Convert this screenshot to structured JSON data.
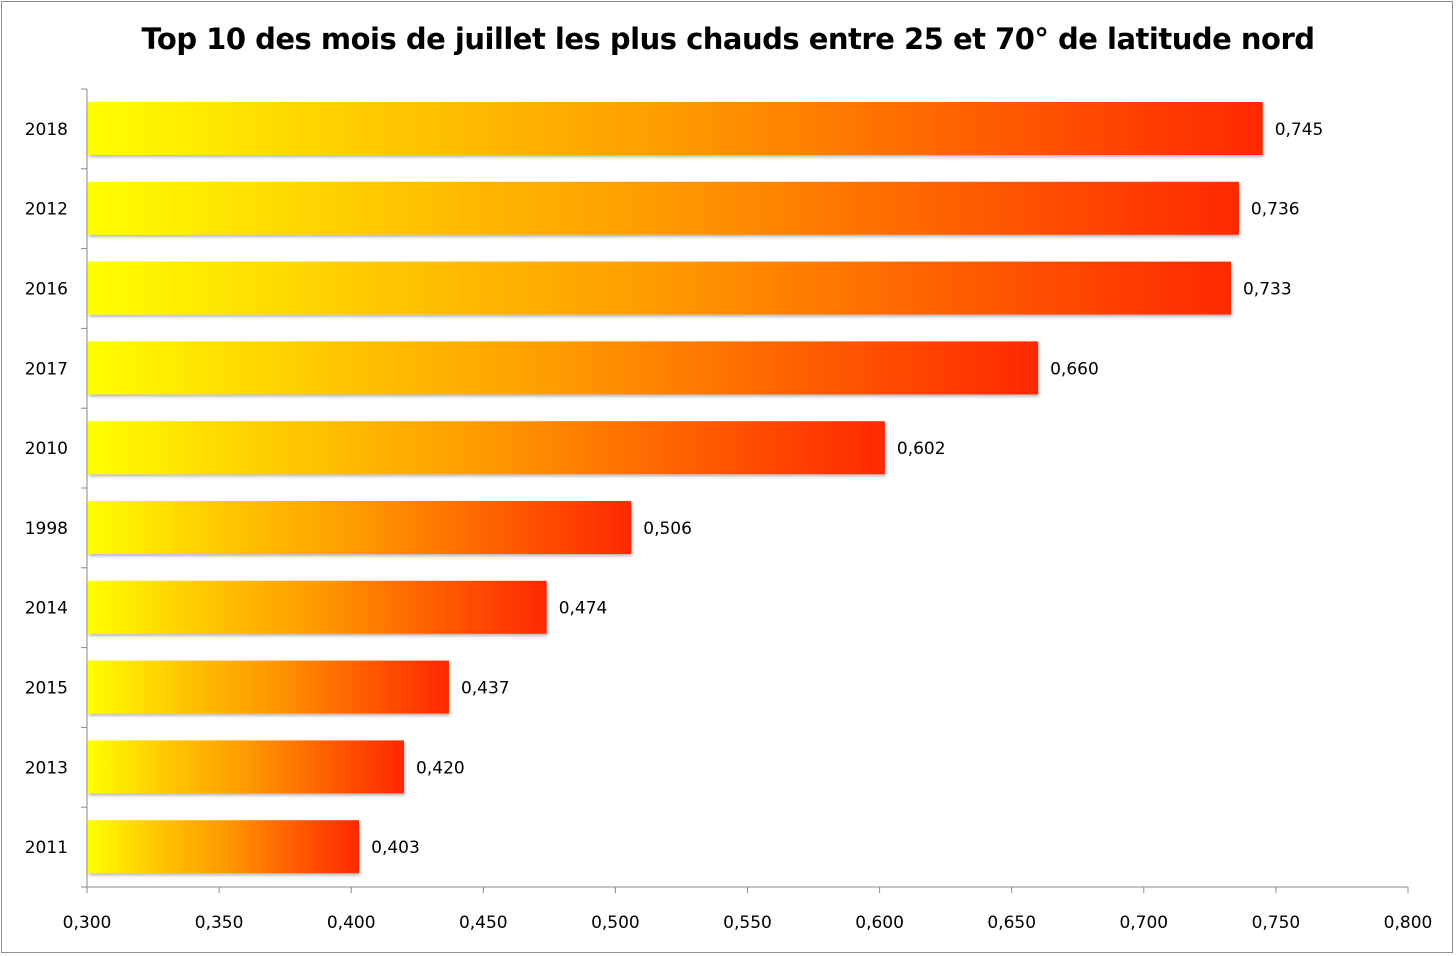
{
  "chart_data": {
    "type": "bar",
    "orientation": "horizontal",
    "title": "Top 10 des mois de juillet les plus chauds entre 25 et 70° de latitude nord",
    "categories": [
      "2018",
      "2012",
      "2016",
      "2017",
      "2010",
      "1998",
      "2014",
      "2015",
      "2013",
      "2011"
    ],
    "values": [
      0.745,
      0.736,
      0.733,
      0.66,
      0.602,
      0.506,
      0.474,
      0.437,
      0.42,
      0.403
    ],
    "data_labels": [
      "0,745",
      "0,736",
      "0,733",
      "0,660",
      "0,602",
      "0,506",
      "0,474",
      "0,437",
      "0,420",
      "0,403"
    ],
    "xlim": [
      0.3,
      0.8
    ],
    "x_ticks": [
      "0,300",
      "0,350",
      "0,400",
      "0,450",
      "0,500",
      "0,550",
      "0,600",
      "0,650",
      "0,700",
      "0,750",
      "0,800"
    ],
    "xlabel": "",
    "ylabel": "",
    "grid": false,
    "legend": "none",
    "bar_gradient": [
      "#ffff00",
      "#ffc800",
      "#ff9a00",
      "#ff6000",
      "#ff2800"
    ]
  }
}
